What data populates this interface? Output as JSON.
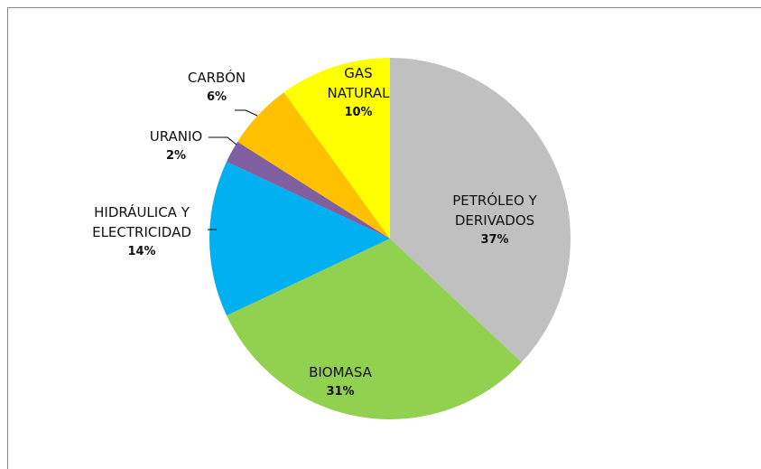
{
  "chart_data": {
    "type": "pie",
    "categories": [
      "PETRÓLEO Y DERIVADOS",
      "BIOMASA",
      "HIDRÁULICA Y ELECTRICIDAD",
      "URANIO",
      "CARBÓN",
      "GAS NATURAL"
    ],
    "values": [
      37,
      31,
      14,
      2,
      6,
      10
    ],
    "value_labels": [
      "37%",
      "31%",
      "14%",
      "2%",
      "6%",
      "10%"
    ],
    "colors": [
      "#c0c0c0",
      "#92d050",
      "#00b0f0",
      "#7f5f9f",
      "#ffc000",
      "#ffff00"
    ]
  }
}
